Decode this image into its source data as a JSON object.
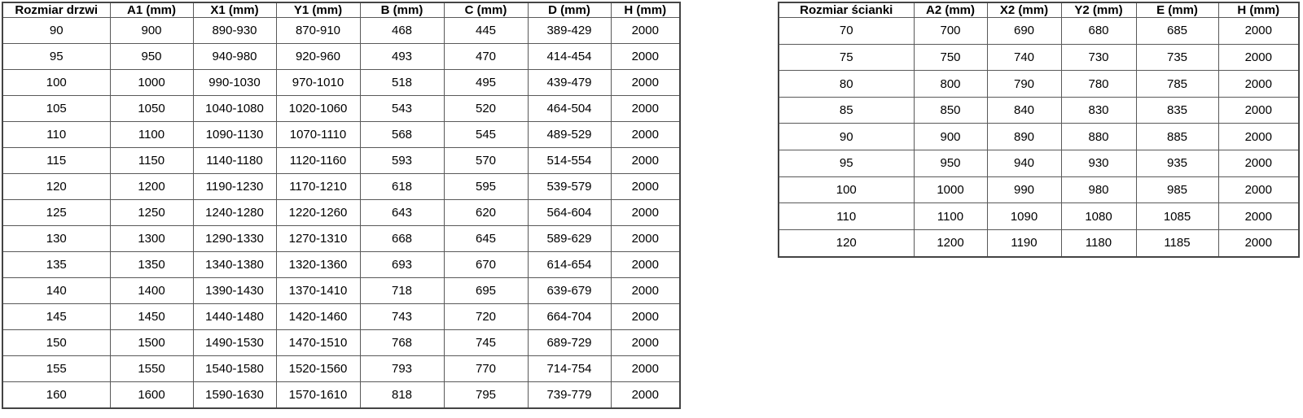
{
  "colors": {
    "background": "#ffffff",
    "grid_border": "#595959",
    "outer_border": "#444444",
    "text": "#000000"
  },
  "door_table": {
    "headers": [
      "Rozmiar drzwi",
      "A1 (mm)",
      "X1 (mm)",
      "Y1 (mm)",
      "B (mm)",
      "C (mm)",
      "D (mm)",
      "H (mm)"
    ],
    "rows": [
      [
        "90",
        "900",
        "890-930",
        "870-910",
        "468",
        "445",
        "389-429",
        "2000"
      ],
      [
        "95",
        "950",
        "940-980",
        "920-960",
        "493",
        "470",
        "414-454",
        "2000"
      ],
      [
        "100",
        "1000",
        "990-1030",
        "970-1010",
        "518",
        "495",
        "439-479",
        "2000"
      ],
      [
        "105",
        "1050",
        "1040-1080",
        "1020-1060",
        "543",
        "520",
        "464-504",
        "2000"
      ],
      [
        "110",
        "1100",
        "1090-1130",
        "1070-1110",
        "568",
        "545",
        "489-529",
        "2000"
      ],
      [
        "115",
        "1150",
        "1140-1180",
        "1120-1160",
        "593",
        "570",
        "514-554",
        "2000"
      ],
      [
        "120",
        "1200",
        "1190-1230",
        "1170-1210",
        "618",
        "595",
        "539-579",
        "2000"
      ],
      [
        "125",
        "1250",
        "1240-1280",
        "1220-1260",
        "643",
        "620",
        "564-604",
        "2000"
      ],
      [
        "130",
        "1300",
        "1290-1330",
        "1270-1310",
        "668",
        "645",
        "589-629",
        "2000"
      ],
      [
        "135",
        "1350",
        "1340-1380",
        "1320-1360",
        "693",
        "670",
        "614-654",
        "2000"
      ],
      [
        "140",
        "1400",
        "1390-1430",
        "1370-1410",
        "718",
        "695",
        "639-679",
        "2000"
      ],
      [
        "145",
        "1450",
        "1440-1480",
        "1420-1460",
        "743",
        "720",
        "664-704",
        "2000"
      ],
      [
        "150",
        "1500",
        "1490-1530",
        "1470-1510",
        "768",
        "745",
        "689-729",
        "2000"
      ],
      [
        "155",
        "1550",
        "1540-1580",
        "1520-1560",
        "793",
        "770",
        "714-754",
        "2000"
      ],
      [
        "160",
        "1600",
        "1590-1630",
        "1570-1610",
        "818",
        "795",
        "739-779",
        "2000"
      ]
    ]
  },
  "wall_table": {
    "headers": [
      "Rozmiar ścianki",
      "A2 (mm)",
      "X2 (mm)",
      "Y2 (mm)",
      "E (mm)",
      "H (mm)"
    ],
    "rows": [
      [
        "70",
        "700",
        "690",
        "680",
        "685",
        "2000"
      ],
      [
        "75",
        "750",
        "740",
        "730",
        "735",
        "2000"
      ],
      [
        "80",
        "800",
        "790",
        "780",
        "785",
        "2000"
      ],
      [
        "85",
        "850",
        "840",
        "830",
        "835",
        "2000"
      ],
      [
        "90",
        "900",
        "890",
        "880",
        "885",
        "2000"
      ],
      [
        "95",
        "950",
        "940",
        "930",
        "935",
        "2000"
      ],
      [
        "100",
        "1000",
        "990",
        "980",
        "985",
        "2000"
      ],
      [
        "110",
        "1100",
        "1090",
        "1080",
        "1085",
        "2000"
      ],
      [
        "120",
        "1200",
        "1190",
        "1180",
        "1185",
        "2000"
      ]
    ]
  }
}
